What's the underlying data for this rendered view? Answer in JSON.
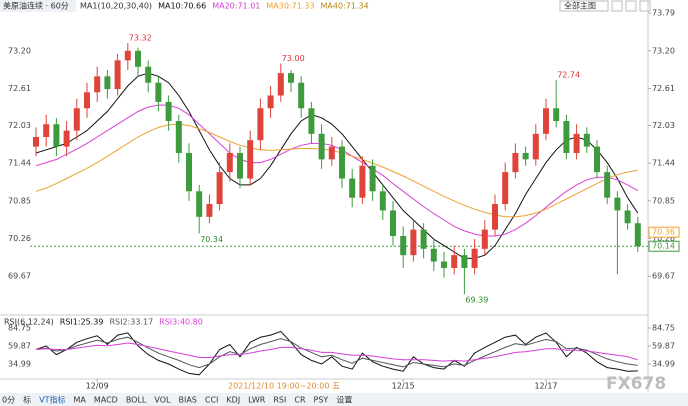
{
  "header": {
    "title": "美原油连续 · 60分",
    "menu": "全部主图"
  },
  "toolbar": [
    "0分",
    "标",
    "VT指标",
    "MA",
    "MACD",
    "BOLL",
    "VOL",
    "BIAS",
    "CCI",
    "KDJ",
    "LWR",
    "RSI",
    "CR",
    "PSY",
    "设置"
  ],
  "watermark": "FX678",
  "crosshair_label": "2021/12/10 19:00~20:00 五",
  "chart_data": [
    {
      "type": "candlestick",
      "legend_prefix": "MA1(10,20,30,40)",
      "extra_legend": {
        "name": "MA40:71.34",
        "color": "#b8860b"
      },
      "up_color": "#e0433a",
      "down_color": "#3d9b3d",
      "categories": [
        null,
        null,
        null,
        null,
        null,
        null,
        "12/09",
        null,
        null,
        null,
        null,
        null,
        null,
        null,
        null,
        null,
        null,
        null,
        null,
        null,
        null,
        null,
        null,
        null,
        null,
        null,
        null,
        null,
        null,
        null,
        null,
        null,
        null,
        null,
        null,
        null,
        "12/15",
        null,
        null,
        null,
        null,
        null,
        null,
        null,
        null,
        null,
        null,
        null,
        null,
        null,
        "12/17",
        null,
        null,
        null,
        null,
        null,
        null,
        null,
        null,
        null
      ],
      "open": [
        71.7,
        71.85,
        72.05,
        71.7,
        71.95,
        72.3,
        72.55,
        72.8,
        72.6,
        73.05,
        73.2,
        72.95,
        72.7,
        72.4,
        72.1,
        71.6,
        71.0,
        70.6,
        70.8,
        71.3,
        71.6,
        71.2,
        71.8,
        72.3,
        72.5,
        72.85,
        72.7,
        72.3,
        71.9,
        71.5,
        71.7,
        71.2,
        70.9,
        71.4,
        71.0,
        70.7,
        70.3,
        70.0,
        70.4,
        70.1,
        69.9,
        69.8,
        70.0,
        69.8,
        70.1,
        70.4,
        70.8,
        71.3,
        71.6,
        71.5,
        71.9,
        72.3,
        72.1,
        71.6,
        71.9,
        71.7,
        71.3,
        70.9,
        70.7,
        70.5
      ],
      "high": [
        72.0,
        72.2,
        72.15,
        72.1,
        72.45,
        72.7,
        72.95,
        72.9,
        73.15,
        73.32,
        73.25,
        73.05,
        72.8,
        72.5,
        72.2,
        71.75,
        71.1,
        70.95,
        71.45,
        71.75,
        71.7,
        71.95,
        72.45,
        72.65,
        73.0,
        72.9,
        72.8,
        72.4,
        72.05,
        71.85,
        71.8,
        71.35,
        71.55,
        71.5,
        71.1,
        70.85,
        70.45,
        70.55,
        70.5,
        70.25,
        70.05,
        70.15,
        70.1,
        70.25,
        70.55,
        70.95,
        71.45,
        71.75,
        71.7,
        72.05,
        72.45,
        72.74,
        72.2,
        72.05,
        72.0,
        71.8,
        71.4,
        71.0,
        70.8,
        70.6
      ],
      "low": [
        71.55,
        71.7,
        71.55,
        71.55,
        71.8,
        72.15,
        72.4,
        72.45,
        72.5,
        72.9,
        72.8,
        72.55,
        72.25,
        71.95,
        71.45,
        70.85,
        70.34,
        70.5,
        70.7,
        71.15,
        71.05,
        71.1,
        71.65,
        72.15,
        72.4,
        72.55,
        72.15,
        71.75,
        71.35,
        71.4,
        71.05,
        70.75,
        70.8,
        70.85,
        70.55,
        70.15,
        69.8,
        69.9,
        69.95,
        69.75,
        69.65,
        69.7,
        69.39,
        69.7,
        70.0,
        70.3,
        70.7,
        71.2,
        71.4,
        71.4,
        71.8,
        72.0,
        71.5,
        71.5,
        71.6,
        71.2,
        70.8,
        69.7,
        70.4,
        70.05
      ],
      "close": [
        71.85,
        72.05,
        71.7,
        71.95,
        72.3,
        72.55,
        72.8,
        72.6,
        73.05,
        73.2,
        72.95,
        72.7,
        72.4,
        72.1,
        71.6,
        71.0,
        70.6,
        70.8,
        71.3,
        71.6,
        71.2,
        71.8,
        72.3,
        72.5,
        72.85,
        72.7,
        72.3,
        71.9,
        71.5,
        71.7,
        71.2,
        70.9,
        71.4,
        71.0,
        70.7,
        70.3,
        70.0,
        70.4,
        70.1,
        69.9,
        69.8,
        70.0,
        69.8,
        70.1,
        70.4,
        70.8,
        71.3,
        71.6,
        71.5,
        71.9,
        72.3,
        72.1,
        71.6,
        71.9,
        71.7,
        71.3,
        70.9,
        70.7,
        70.5,
        70.14
      ],
      "high_labels": [
        null,
        null,
        null,
        null,
        null,
        null,
        null,
        null,
        null,
        "73.32",
        null,
        null,
        null,
        null,
        null,
        null,
        null,
        null,
        null,
        null,
        null,
        null,
        null,
        null,
        "73.00",
        null,
        null,
        null,
        null,
        null,
        null,
        null,
        null,
        null,
        null,
        null,
        null,
        null,
        null,
        null,
        null,
        null,
        null,
        null,
        null,
        null,
        null,
        null,
        null,
        null,
        null,
        "72.74",
        null,
        null,
        null,
        null,
        null,
        null,
        null,
        null
      ],
      "low_labels": [
        null,
        null,
        null,
        null,
        null,
        null,
        null,
        null,
        null,
        null,
        null,
        null,
        null,
        null,
        null,
        null,
        "70.34",
        null,
        null,
        null,
        null,
        null,
        null,
        null,
        null,
        null,
        null,
        null,
        null,
        null,
        null,
        null,
        null,
        null,
        null,
        null,
        null,
        null,
        null,
        null,
        null,
        null,
        "69.39",
        null,
        null,
        null,
        null,
        null,
        null,
        null,
        null,
        null,
        null,
        null,
        null,
        null,
        null,
        null,
        null,
        null
      ],
      "series": [
        {
          "name": "MA10:70.66",
          "color": "#111111",
          "values": [
            71.6,
            71.65,
            71.7,
            71.75,
            71.85,
            71.95,
            72.1,
            72.25,
            72.45,
            72.65,
            72.8,
            72.85,
            72.8,
            72.7,
            72.5,
            72.25,
            71.95,
            71.65,
            71.4,
            71.2,
            71.1,
            71.1,
            71.2,
            71.4,
            71.65,
            71.9,
            72.1,
            72.2,
            72.15,
            72.05,
            71.9,
            71.7,
            71.5,
            71.3,
            71.1,
            70.9,
            70.7,
            70.55,
            70.4,
            70.25,
            70.15,
            70.05,
            69.95,
            69.95,
            70.0,
            70.15,
            70.4,
            70.65,
            70.95,
            71.2,
            71.45,
            71.65,
            71.8,
            71.85,
            71.8,
            71.65,
            71.45,
            71.2,
            70.9,
            70.66
          ]
        },
        {
          "name": "MA20:71.01",
          "color": "#d63fd6",
          "values": [
            71.4,
            71.45,
            71.5,
            71.58,
            71.66,
            71.75,
            71.85,
            71.95,
            72.05,
            72.15,
            72.25,
            72.32,
            72.35,
            72.35,
            72.3,
            72.2,
            72.05,
            71.9,
            71.75,
            71.6,
            71.5,
            71.45,
            71.45,
            71.5,
            71.58,
            71.66,
            71.72,
            71.75,
            71.75,
            71.72,
            71.65,
            71.55,
            71.45,
            71.35,
            71.25,
            71.12,
            71.0,
            70.88,
            70.76,
            70.65,
            70.55,
            70.45,
            70.38,
            70.33,
            70.3,
            70.3,
            70.33,
            70.4,
            70.5,
            70.62,
            70.75,
            70.88,
            71.0,
            71.1,
            71.18,
            71.22,
            71.22,
            71.18,
            71.1,
            71.01
          ]
        },
        {
          "name": "MA30:71.33",
          "color": "#f0a030",
          "values": [
            71.0,
            71.05,
            71.12,
            71.2,
            71.28,
            71.36,
            71.45,
            71.55,
            71.65,
            71.75,
            71.85,
            71.93,
            72.0,
            72.04,
            72.05,
            72.03,
            71.98,
            71.92,
            71.85,
            71.78,
            71.72,
            71.68,
            71.65,
            71.64,
            71.65,
            71.66,
            71.67,
            71.67,
            71.66,
            71.64,
            71.6,
            71.55,
            71.5,
            71.44,
            71.38,
            71.31,
            71.24,
            71.16,
            71.08,
            71.0,
            70.92,
            70.85,
            70.78,
            70.72,
            70.67,
            70.63,
            70.6,
            70.6,
            70.62,
            70.66,
            70.72,
            70.8,
            70.88,
            70.96,
            71.04,
            71.12,
            71.2,
            71.26,
            71.3,
            71.33
          ]
        }
      ],
      "markers": [
        {
          "value": 70.36,
          "color": "#f0a030"
        },
        {
          "value": 70.14,
          "color": "#3d9b3d"
        }
      ],
      "ylim": [
        69.11,
        73.87
      ],
      "yticks": [
        73.79,
        {
          "value": 73.2,
          "label": "73.20"
        },
        72.61,
        72.03,
        71.44,
        70.85,
        70.26,
        69.67
      ],
      "grid": false
    },
    {
      "type": "line",
      "legend_prefix": "RSI(6,12,24)",
      "series": [
        {
          "name": "RSI1:25.39",
          "color": "#111111",
          "values": [
            55,
            60,
            48,
            55,
            65,
            70,
            74,
            62,
            75,
            78,
            60,
            48,
            40,
            35,
            28,
            22,
            20,
            35,
            55,
            62,
            45,
            65,
            72,
            75,
            80,
            65,
            48,
            40,
            35,
            45,
            32,
            28,
            50,
            38,
            32,
            28,
            25,
            45,
            35,
            30,
            28,
            40,
            32,
            50,
            58,
            65,
            72,
            75,
            62,
            72,
            78,
            65,
            45,
            58,
            50,
            38,
            30,
            28,
            25,
            25.39
          ]
        },
        {
          "name": "RSI2:33.17",
          "color": "#555555",
          "values": [
            55,
            57,
            53,
            55,
            60,
            64,
            68,
            64,
            69,
            72,
            65,
            57,
            50,
            45,
            40,
            34,
            30,
            35,
            45,
            52,
            48,
            56,
            62,
            66,
            70,
            66,
            57,
            51,
            45,
            47,
            41,
            36,
            43,
            40,
            37,
            34,
            31,
            37,
            35,
            33,
            31,
            35,
            33,
            40,
            46,
            52,
            58,
            63,
            61,
            65,
            69,
            66,
            56,
            57,
            54,
            48,
            42,
            38,
            35,
            33.17
          ]
        },
        {
          "name": "RSI3:40.80",
          "color": "#d63fd6",
          "values": [
            55,
            56,
            55,
            55,
            57,
            59,
            61,
            60,
            62,
            64,
            62,
            59,
            56,
            53,
            50,
            47,
            44,
            44,
            46,
            48,
            48,
            50,
            53,
            55,
            58,
            58,
            56,
            54,
            51,
            51,
            49,
            47,
            47,
            46,
            44,
            42,
            41,
            41,
            41,
            40,
            39,
            40,
            39,
            41,
            43,
            45,
            48,
            51,
            52,
            54,
            56,
            56,
            54,
            54,
            53,
            51,
            49,
            47,
            45,
            40.8
          ]
        }
      ],
      "ylim": [
        15.64,
        98.57
      ],
      "yticks": [
        84.75,
        59.87,
        34.99
      ],
      "grid": false
    }
  ]
}
